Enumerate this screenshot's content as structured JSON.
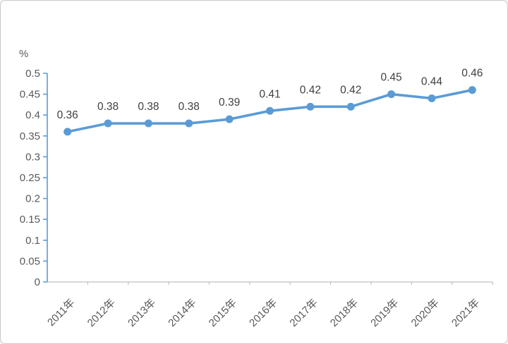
{
  "chart_data": {
    "type": "line",
    "title": "",
    "unit_label": "%",
    "categories": [
      "2011年",
      "2012年",
      "2013年",
      "2014年",
      "2015年",
      "2016年",
      "2017年",
      "2018年",
      "2019年",
      "2020年",
      "2021年"
    ],
    "values": [
      0.36,
      0.38,
      0.38,
      0.38,
      0.39,
      0.41,
      0.42,
      0.42,
      0.45,
      0.44,
      0.46
    ],
    "data_labels": [
      "0.36",
      "0.38",
      "0.38",
      "0.38",
      "0.39",
      "0.41",
      "0.42",
      "0.42",
      "0.45",
      "0.44",
      "0.46"
    ],
    "y_tick_labels": [
      "0",
      "0.05",
      "0.1",
      "0.15",
      "0.2",
      "0.25",
      "0.3",
      "0.35",
      "0.4",
      "0.45",
      "0.5"
    ],
    "xlabel": "",
    "ylabel": "%",
    "ylim": [
      0,
      0.5
    ],
    "ytick_step": 0.05,
    "x_label_rotation_deg": -45,
    "grid": false,
    "legend": "none",
    "colors": {
      "line": "#5B9BD5",
      "marker": "#5B9BD5",
      "y_axis": "#5B9BD5",
      "x_axis": "#BFBFBF",
      "tick_label": "#595959",
      "data_label": "#404040",
      "frame_border": "#C9C9C9",
      "background": "#FFFFFF"
    }
  }
}
